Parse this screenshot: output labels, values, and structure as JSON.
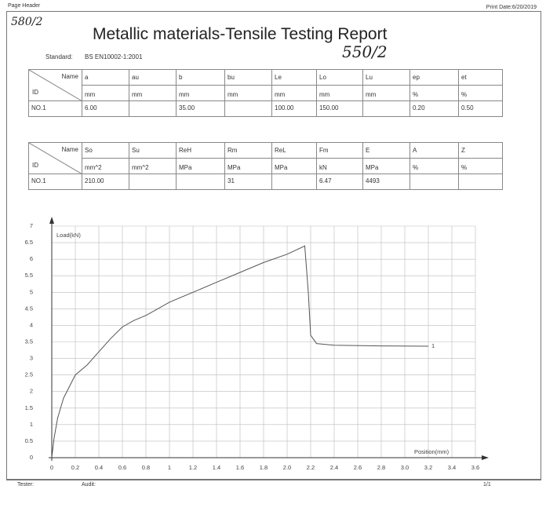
{
  "header": {
    "left": "Page Header",
    "right": "Print Date:6/20/2019"
  },
  "handwriting": {
    "top_left": "580/2",
    "beside_title": "550/2"
  },
  "title": "Metallic materials-Tensile Testing Report",
  "standard": {
    "label": "Standard:",
    "value": "BS EN10002-1:2001"
  },
  "table1": {
    "corner": {
      "top": "Name",
      "bottom": "ID"
    },
    "headers": [
      "a",
      "au",
      "b",
      "bu",
      "Le",
      "Lo",
      "Lu",
      "ep",
      "et"
    ],
    "units": [
      "mm",
      "mm",
      "mm",
      "mm",
      "mm",
      "mm",
      "mm",
      "%",
      "%"
    ],
    "rows": [
      [
        "NO.1",
        "6.00",
        null,
        "35.00",
        null,
        "100.00",
        "150.00",
        null,
        "0.20",
        "0.50"
      ]
    ]
  },
  "table2": {
    "corner": {
      "top": "Name",
      "bottom": "ID"
    },
    "headers": [
      "So",
      "Su",
      "ReH",
      "Rm",
      "ReL",
      "Fm",
      "E",
      "A",
      "Z"
    ],
    "units": [
      "mm^2",
      "mm^2",
      "MPa",
      "MPa",
      "MPa",
      "kN",
      "MPa",
      "%",
      "%"
    ],
    "rows": [
      [
        "NO.1",
        "210.00",
        null,
        null,
        "31",
        null,
        "6.47",
        "4493",
        null,
        null
      ]
    ]
  },
  "chart_data": {
    "type": "line",
    "y_label": "Load(kN)",
    "x_label": "Position(mm)",
    "x": [
      0,
      0.02,
      0.05,
      0.1,
      0.2,
      0.3,
      0.4,
      0.5,
      0.6,
      0.7,
      0.8,
      0.9,
      1.0,
      1.2,
      1.4,
      1.6,
      1.8,
      2.0,
      2.15,
      2.18,
      2.2,
      2.25,
      2.4,
      2.8,
      3.2
    ],
    "series": [
      {
        "name": "1",
        "color": "#555555",
        "values": [
          0,
          0.6,
          1.2,
          1.8,
          2.5,
          2.8,
          3.2,
          3.6,
          3.95,
          4.15,
          4.3,
          4.5,
          4.7,
          5.0,
          5.3,
          5.6,
          5.9,
          6.15,
          6.4,
          5.0,
          3.7,
          3.45,
          3.4,
          3.38,
          3.37
        ]
      }
    ],
    "xlim": [
      0,
      3.6
    ],
    "xticks": [
      0,
      0.2,
      0.4,
      0.6,
      0.8,
      1,
      1.2,
      1.4,
      1.6,
      1.8,
      {
        "value": 2,
        "label": "2.0"
      },
      2.2,
      2.4,
      2.6,
      2.8,
      {
        "value": 3,
        "label": "3.0"
      },
      3.2,
      3.4,
      3.6
    ],
    "ylim": [
      0,
      7
    ],
    "yticks": [
      0,
      0.5,
      1,
      1.5,
      2,
      2.5,
      3,
      3.5,
      4,
      4.5,
      5,
      5.5,
      6,
      6.5,
      7
    ],
    "grid": true
  },
  "footer": {
    "tester": "Tester:",
    "audit": "Audit:",
    "page": "1/1"
  }
}
